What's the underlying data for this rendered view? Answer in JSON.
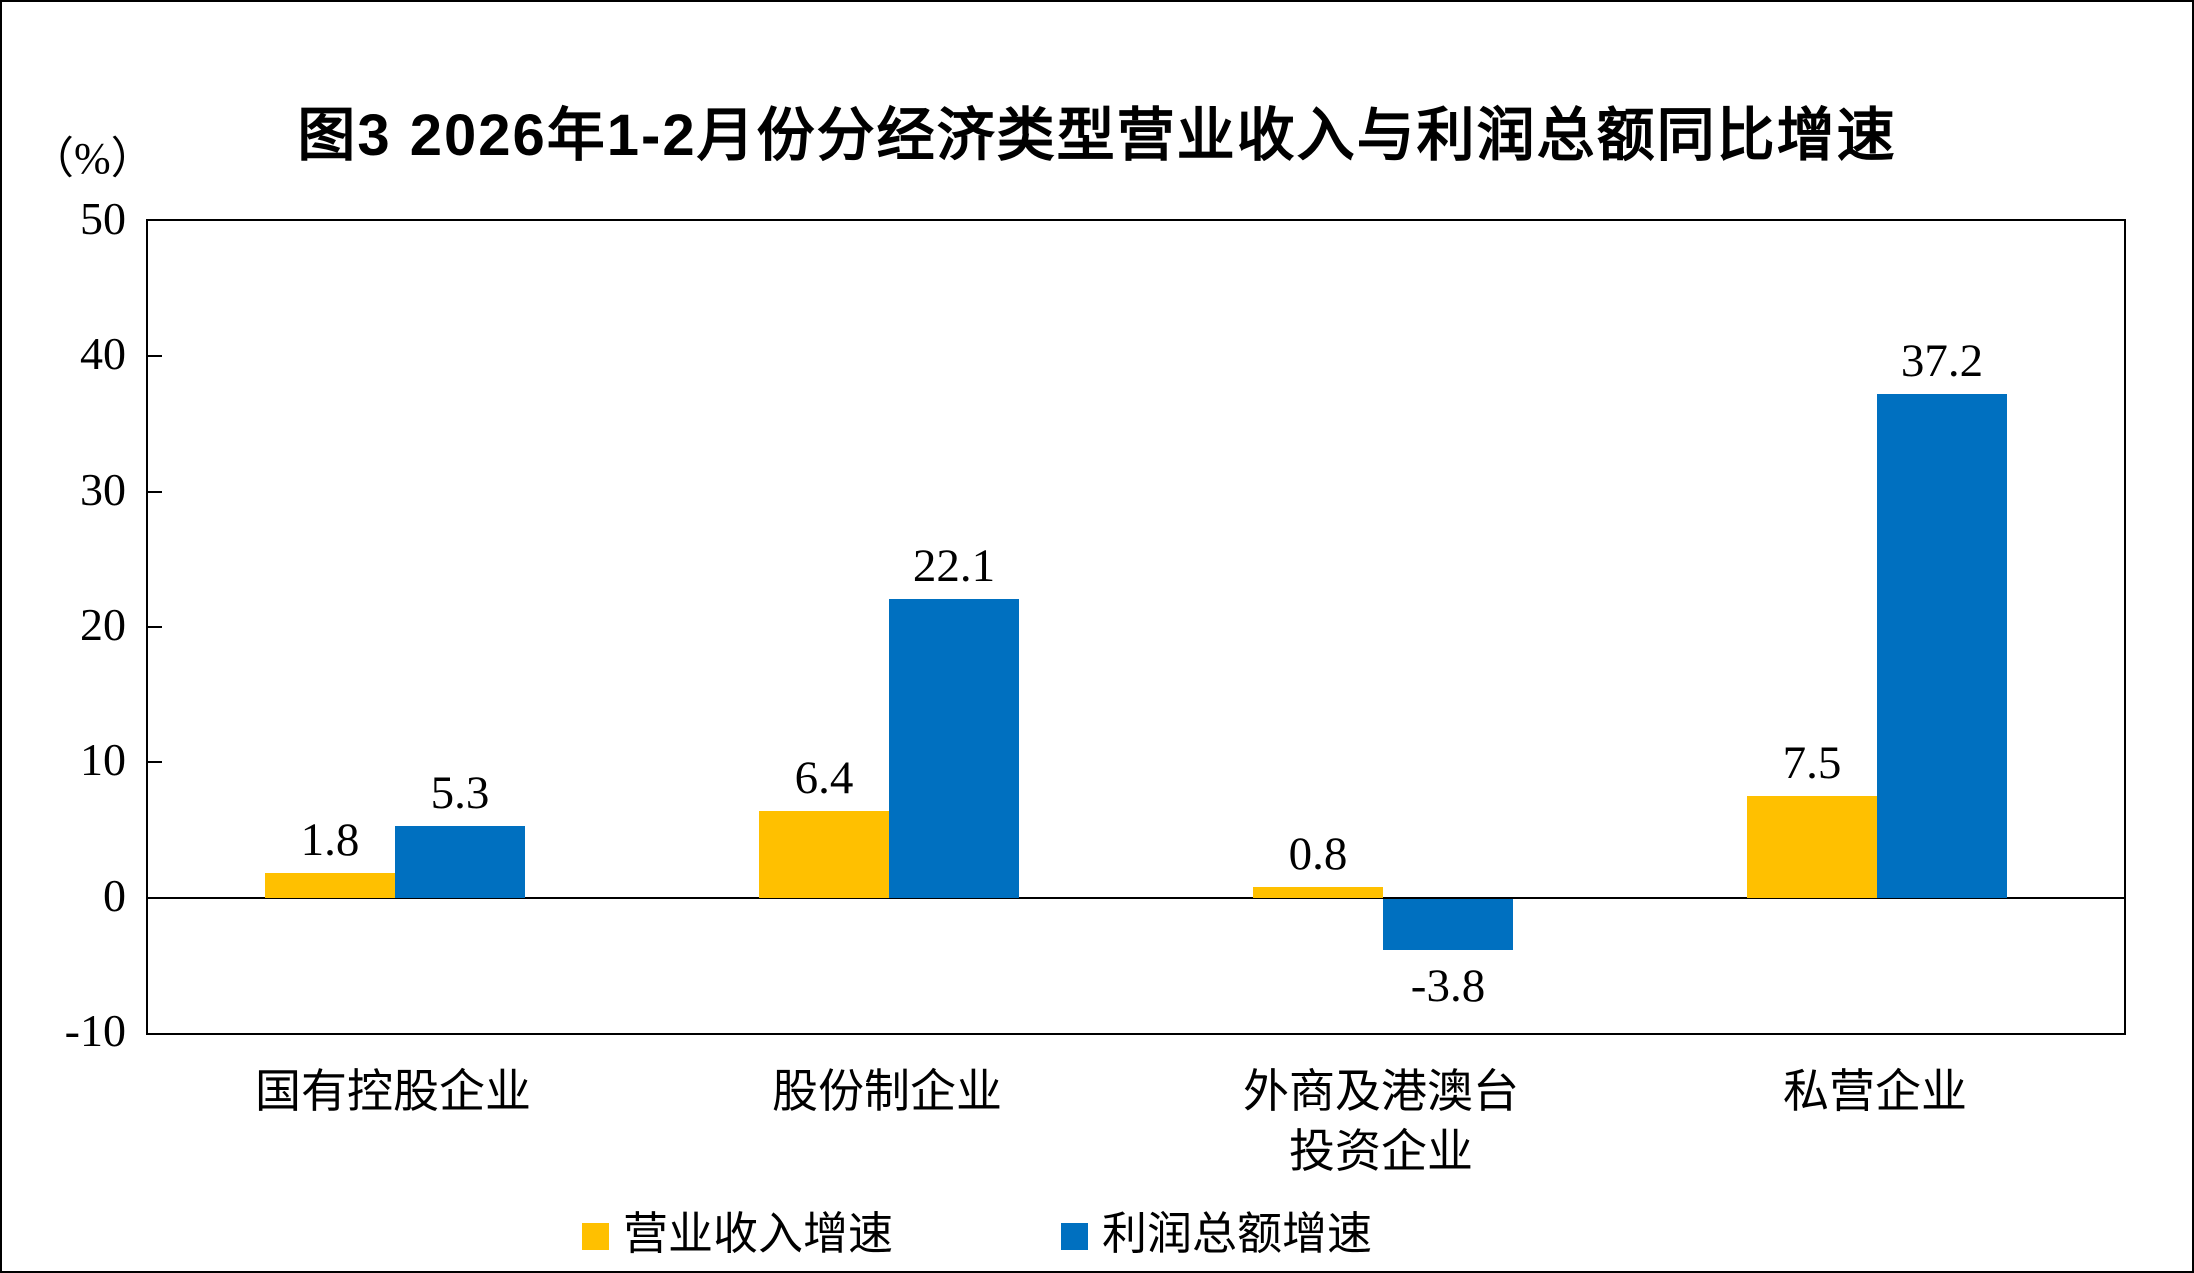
{
  "chart_data": {
    "type": "bar",
    "title": "图3 2026年1-2月份分经济类型营业收入与利润总额同比增速",
    "y_axis_unit": "（%）",
    "ylim": [
      -10,
      50
    ],
    "y_ticks": [
      50,
      40,
      30,
      20,
      10,
      0,
      -10
    ],
    "grid": false,
    "legend_position": "bottom",
    "categories": [
      {
        "key": "state_holding",
        "label": "国有控股企业"
      },
      {
        "key": "share_holding",
        "label": "股份制企业"
      },
      {
        "key": "foreign_hmt",
        "label": "外商及港澳台\n投资企业"
      },
      {
        "key": "private",
        "label": "私营企业"
      }
    ],
    "series": [
      {
        "key": "revenue_growth",
        "name": "营业收入增速",
        "color": "#FFC000",
        "values": [
          1.8,
          6.4,
          0.8,
          7.5
        ]
      },
      {
        "key": "profit_growth",
        "name": "利润总额增速",
        "color": "#0070C0",
        "values": [
          5.3,
          22.1,
          -3.8,
          37.2
        ]
      }
    ]
  }
}
